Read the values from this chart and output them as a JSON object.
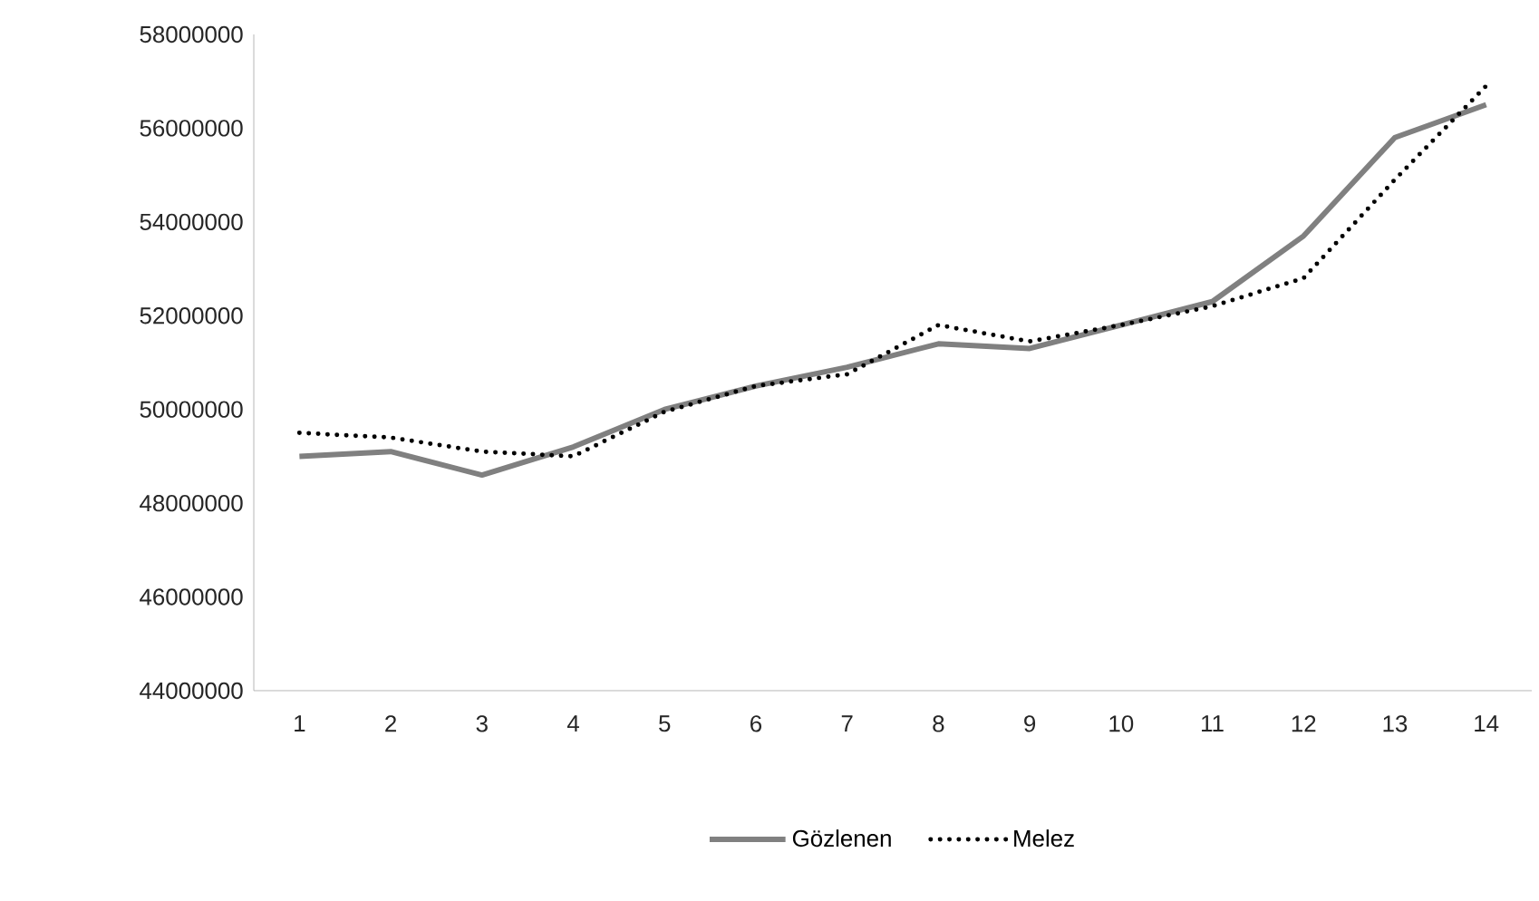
{
  "chart_data": {
    "type": "line",
    "categories": [
      "1",
      "2",
      "3",
      "4",
      "5",
      "6",
      "7",
      "8",
      "9",
      "10",
      "11",
      "12",
      "13",
      "14"
    ],
    "series": [
      {
        "name": "Gözlenen",
        "color": "#808080",
        "line_style": "solid",
        "values": [
          49000000,
          49100000,
          48600000,
          49200000,
          50000000,
          50500000,
          50900000,
          51400000,
          51300000,
          51800000,
          52300000,
          53700000,
          55800000,
          56500000
        ]
      },
      {
        "name": "Melez",
        "color": "#000000",
        "line_style": "dotted",
        "values": [
          49500000,
          49400000,
          49100000,
          49000000,
          49950000,
          50500000,
          50750000,
          51800000,
          51450000,
          51800000,
          52200000,
          52800000,
          54900000,
          56900000
        ]
      }
    ],
    "ylim": [
      44000000,
      58000000
    ],
    "yticks": [
      44000000,
      46000000,
      48000000,
      50000000,
      52000000,
      54000000,
      56000000,
      58000000
    ],
    "grid": false,
    "legend": "bottom",
    "marker": "none"
  }
}
